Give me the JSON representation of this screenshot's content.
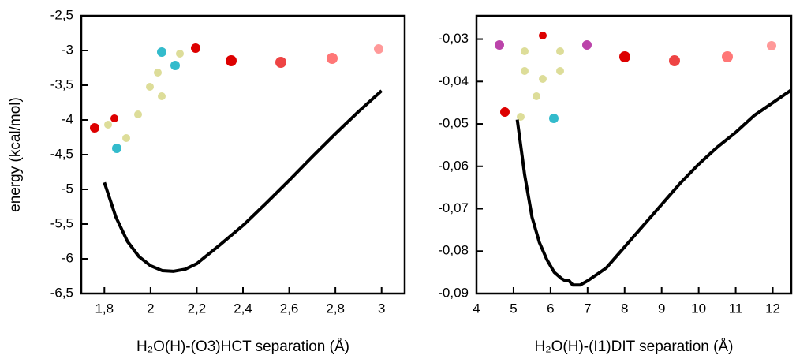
{
  "chart_data": [
    {
      "type": "line",
      "y_label": "energy (kcal/mol)",
      "x_label": "H₂O(H)-(O3)HCT separation (Å)",
      "xlim": [
        1.7,
        3.1
      ],
      "xticks": [
        {
          "value": 1.8,
          "label": "1,8"
        },
        2,
        {
          "value": 2.2,
          "label": "2,2"
        },
        {
          "value": 2.4,
          "label": "2,4"
        },
        {
          "value": 2.6,
          "label": "2,6"
        },
        {
          "value": 2.8,
          "label": "2,8"
        },
        3
      ],
      "ylim": [
        -6.5,
        -2.5
      ],
      "yticks": [
        {
          "value": -2.5,
          "label": "-2,5"
        },
        -3,
        {
          "value": -3.5,
          "label": "-3,5"
        },
        -4,
        {
          "value": -4.5,
          "label": "-4,5"
        },
        -5,
        {
          "value": -5.5,
          "label": "-5,5"
        },
        -6,
        {
          "value": -6.5,
          "label": "-6,5"
        }
      ],
      "series": [
        {
          "color": "#000000",
          "x": [
            1.8,
            1.85,
            1.9,
            1.95,
            2.0,
            2.05,
            2.1,
            2.15,
            2.2,
            2.3,
            2.4,
            2.5,
            2.6,
            2.7,
            2.8,
            2.9,
            3.0
          ],
          "values": [
            -4.9,
            -5.4,
            -5.75,
            -5.97,
            -6.1,
            -6.17,
            -6.18,
            -6.15,
            -6.07,
            -5.8,
            -5.52,
            -5.2,
            -4.87,
            -4.53,
            -4.2,
            -3.88,
            -3.58
          ]
        }
      ]
    },
    {
      "type": "line",
      "x_label": "H₂O(H)-(I1)DIT separation (Å)",
      "xlim": [
        4,
        12.5
      ],
      "xticks": [
        4,
        5,
        6,
        7,
        8,
        9,
        10,
        11,
        12
      ],
      "ylim": [
        -0.09,
        -0.0245
      ],
      "yticks": [
        {
          "value": -0.03,
          "label": "-0,03"
        },
        {
          "value": -0.04,
          "label": "-0,04"
        },
        {
          "value": -0.05,
          "label": "-0,05"
        },
        {
          "value": -0.06,
          "label": "-0,06"
        },
        {
          "value": -0.07,
          "label": "-0,07"
        },
        {
          "value": -0.08,
          "label": "-0,08"
        },
        {
          "value": -0.09,
          "label": "-0,09"
        }
      ],
      "series": [
        {
          "color": "#000000",
          "x": [
            5.1,
            5.3,
            5.5,
            5.7,
            5.9,
            6.1,
            6.3,
            6.4,
            6.5,
            6.6,
            6.8,
            7.0,
            7.5,
            8,
            8.5,
            9,
            9.5,
            10,
            10.5,
            11,
            11.5,
            12,
            12.5
          ],
          "values": [
            -0.049,
            -0.062,
            -0.072,
            -0.078,
            -0.082,
            -0.085,
            -0.0865,
            -0.087,
            -0.087,
            -0.088,
            -0.088,
            -0.087,
            -0.084,
            -0.079,
            -0.074,
            -0.069,
            -0.064,
            -0.0595,
            -0.0555,
            -0.052,
            -0.048,
            -0.045,
            -0.042
          ]
        }
      ]
    }
  ]
}
